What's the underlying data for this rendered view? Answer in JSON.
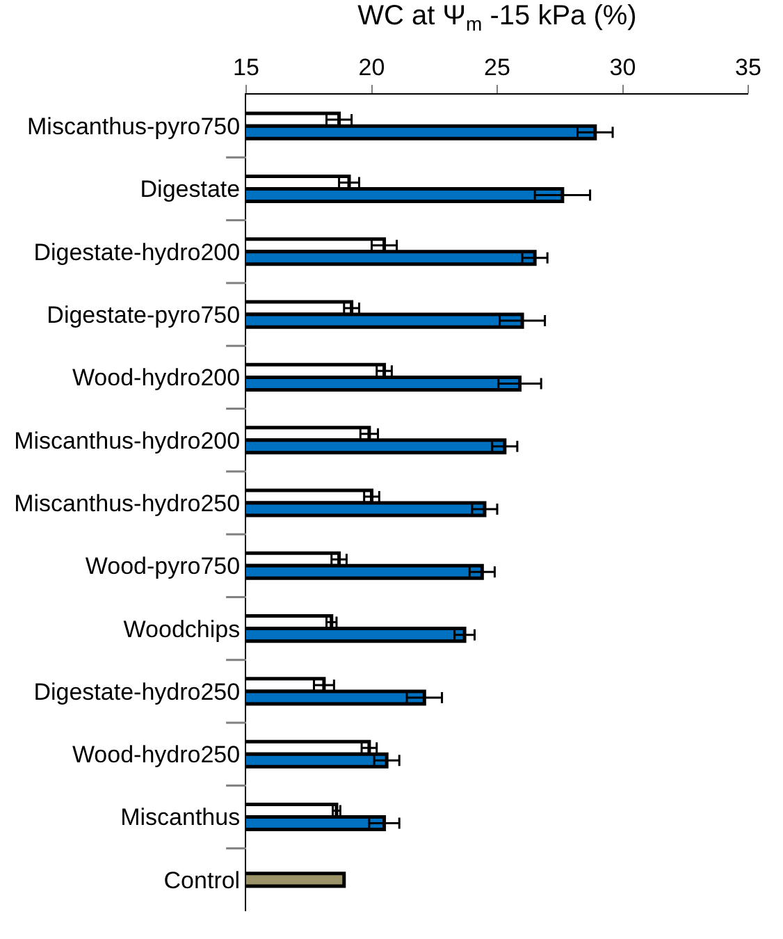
{
  "chart_data": {
    "type": "bar",
    "orientation": "horizontal",
    "xlabel": "WC at Ψ$_{m}$ -15 kPa (%)",
    "categories": [
      "Miscanthus-pyro750",
      "Digestate",
      "Digestate-hydro200",
      "Digestate-pyro750",
      "Wood-hydro200",
      "Miscanthus-hydro200",
      "Miscanthus-hydro250",
      "Wood-pyro750",
      "Woodchips",
      "Digestate-hydro250",
      "Wood-hydro250",
      "Miscanthus",
      "Control"
    ],
    "series": [
      {
        "color": "#ffffff",
        "values": [
          18.7,
          19.1,
          20.5,
          19.2,
          20.5,
          19.9,
          20.0,
          18.7,
          18.4,
          18.1,
          19.9,
          18.6,
          null
        ],
        "errors": [
          0.5,
          0.4,
          0.5,
          0.3,
          0.3,
          0.35,
          0.3,
          0.3,
          0.2,
          0.4,
          0.3,
          0.15,
          null
        ]
      },
      {
        "color": "#0070c0",
        "values": [
          28.9,
          27.6,
          26.5,
          26.0,
          25.9,
          25.3,
          24.5,
          24.4,
          23.7,
          22.1,
          20.6,
          20.5,
          null
        ],
        "errors": [
          0.7,
          1.1,
          0.5,
          0.9,
          0.85,
          0.5,
          0.5,
          0.5,
          0.4,
          0.7,
          0.5,
          0.6,
          null
        ]
      },
      {
        "color": "#9c9468",
        "values": [
          null,
          null,
          null,
          null,
          null,
          null,
          null,
          null,
          null,
          null,
          null,
          null,
          18.9
        ]
      }
    ],
    "xlim": [
      15,
      35
    ],
    "xticks": [
      15,
      20,
      25,
      30,
      35
    ]
  }
}
